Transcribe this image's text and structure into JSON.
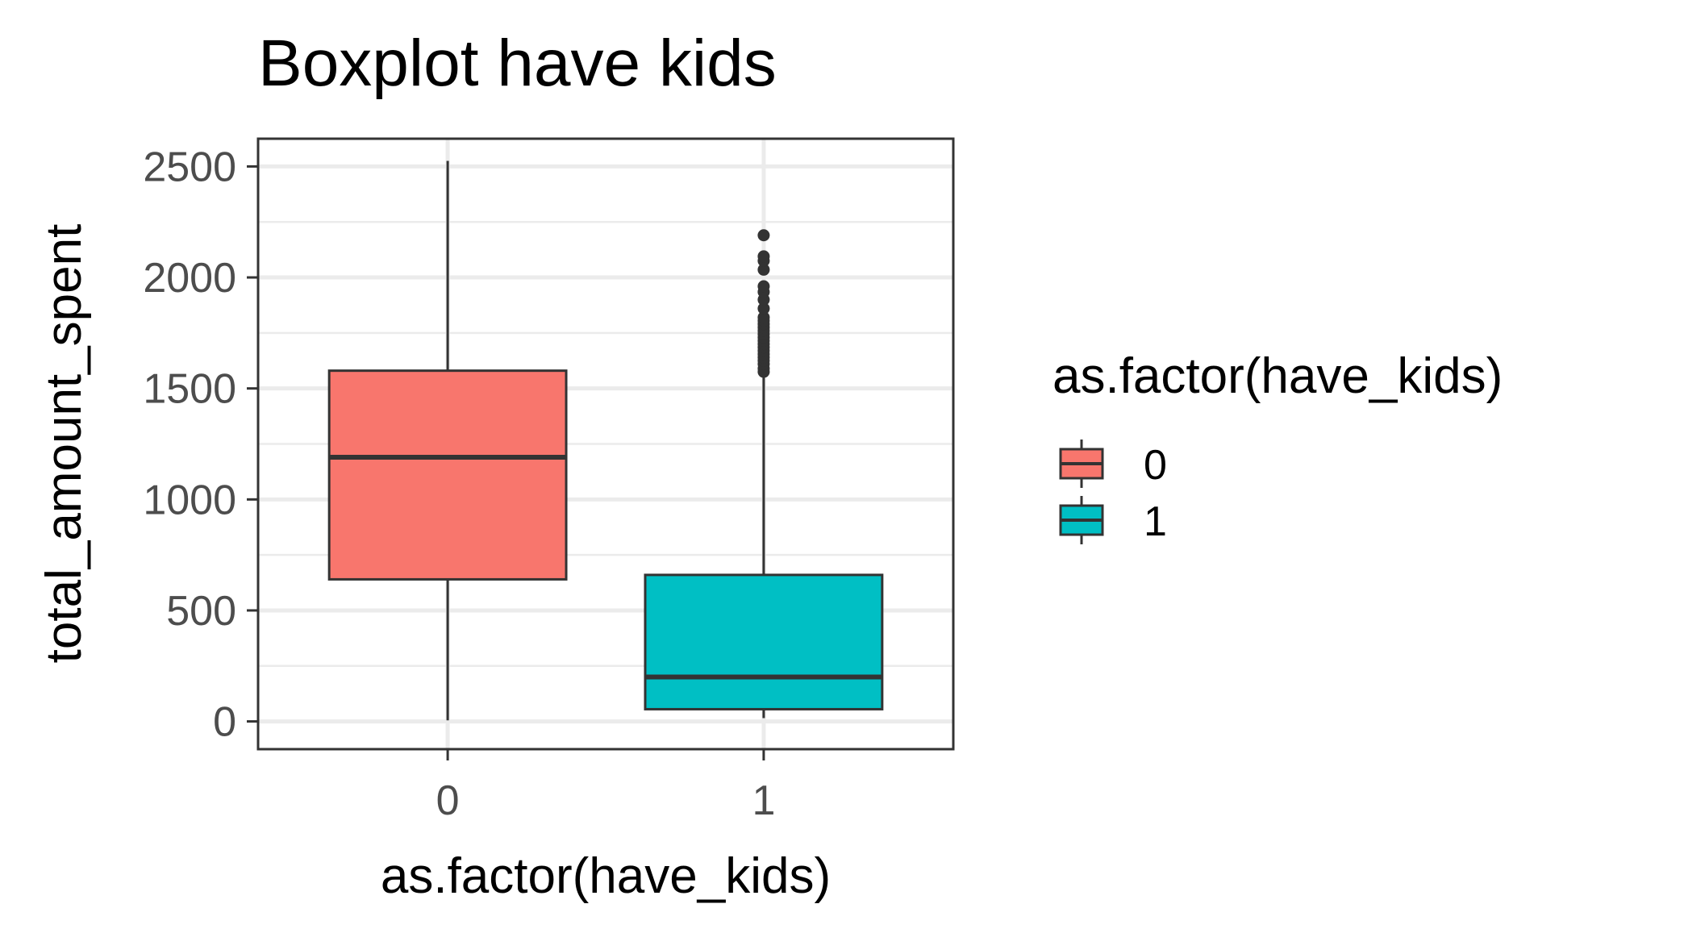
{
  "chart_data": {
    "type": "boxplot",
    "title": "Boxplot have kids",
    "xlabel": "as.factor(have_kids)",
    "ylabel": "total_amount_spent",
    "categories": [
      "0",
      "1"
    ],
    "ylim": [
      -125,
      2625
    ],
    "yticks": [
      0,
      500,
      1000,
      1500,
      2000,
      2500
    ],
    "ytick_labels": [
      "0",
      "500",
      "1000",
      "1500",
      "2000",
      "2500"
    ],
    "grid": true,
    "boxes": [
      {
        "category": "0",
        "min": 5,
        "q1": 640,
        "median": 1190,
        "q3": 1580,
        "max": 2525,
        "outliers": [],
        "fill": "#F8766D"
      },
      {
        "category": "1",
        "min": 15,
        "q1": 55,
        "median": 200,
        "q3": 660,
        "max": 1560,
        "outliers": [
          1575,
          1590,
          1610,
          1625,
          1640,
          1655,
          1670,
          1685,
          1700,
          1715,
          1730,
          1745,
          1760,
          1775,
          1790,
          1805,
          1820,
          1860,
          1900,
          1935,
          1960,
          2035,
          2075,
          2095,
          2190
        ],
        "fill": "#00BFC4"
      }
    ],
    "legend": {
      "title": "as.factor(have_kids)",
      "position": "right",
      "entries": [
        {
          "label": "0",
          "color": "#F8766D"
        },
        {
          "label": "1",
          "color": "#00BFC4"
        }
      ]
    }
  }
}
